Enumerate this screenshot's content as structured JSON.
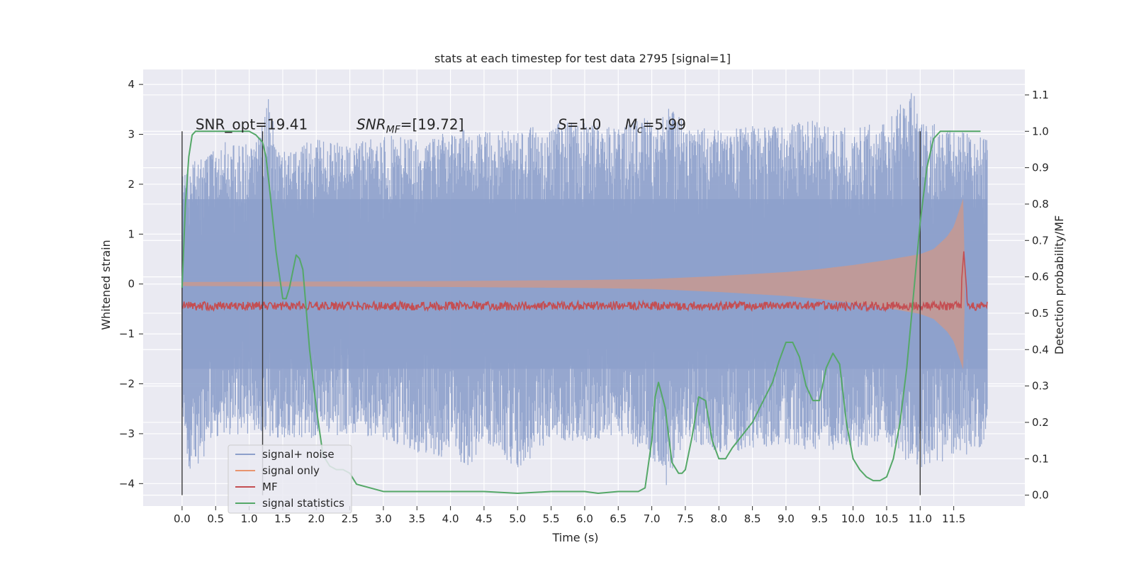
{
  "chart_data": {
    "type": "line",
    "title": "stats at each timestep for test data 2795 [signal=1]",
    "xlabel": "Time (s)",
    "ylabel": "Whitened strain",
    "y2label": "Detection probability/MF",
    "xlim": [
      -0.58,
      12.56
    ],
    "ylim": [
      -4.45,
      4.3
    ],
    "y2lim": [
      -0.03,
      1.17
    ],
    "xticks": [
      0.0,
      0.5,
      1.0,
      1.5,
      2.0,
      2.5,
      3.0,
      3.5,
      4.0,
      4.5,
      5.0,
      5.5,
      6.0,
      6.5,
      7.0,
      7.5,
      8.0,
      8.5,
      9.0,
      9.5,
      10.0,
      10.5,
      11.0,
      11.5
    ],
    "xtick_labels": [
      "0.0",
      "0.5",
      "1.0",
      "1.5",
      "2.0",
      "2.5",
      "3.0",
      "3.5",
      "4.0",
      "4.5",
      "5.0",
      "5.5",
      "6.0",
      "6.5",
      "7.0",
      "7.5",
      "8.0",
      "8.5",
      "9.0",
      "9.5",
      "10.0",
      "10.5",
      "11.0",
      "11.5"
    ],
    "yticks": [
      -4,
      -3,
      -2,
      -1,
      0,
      1,
      2,
      3,
      4
    ],
    "ytick_labels": [
      "−4",
      "−3",
      "−2",
      "−1",
      "0",
      "1",
      "2",
      "3",
      "4"
    ],
    "y2ticks": [
      0.0,
      0.1,
      0.2,
      0.3,
      0.4,
      0.5,
      0.6,
      0.7,
      0.8,
      0.9,
      1.0,
      1.1
    ],
    "y2tick_labels": [
      "0.0",
      "0.1",
      "0.2",
      "0.3",
      "0.4",
      "0.5",
      "0.6",
      "0.7",
      "0.8",
      "0.9",
      "1.0",
      "1.1"
    ],
    "grid": true,
    "legend_position": "lower-left",
    "vlines": [
      0.0,
      1.2,
      11.0
    ],
    "annotations": [
      {
        "text": "SNR_opt=19.41",
        "x": 0.2,
        "y": 3.1
      },
      {
        "text": "SNR_MF=[19.72]",
        "x": 2.6,
        "y": 3.1
      },
      {
        "text": "S=1.0",
        "x": 5.6,
        "y": 3.1
      },
      {
        "text": "M_c=5.99",
        "x": 6.6,
        "y": 3.1
      }
    ],
    "series": [
      {
        "name": "signal+ noise",
        "color": "#8da0cb",
        "axis": "left",
        "x_range": [
          0.0,
          12.0
        ],
        "envelope_max": [
          [
            0.0,
            2.2
          ],
          [
            0.5,
            2.9
          ],
          [
            1.0,
            2.8
          ],
          [
            1.3,
            3.75
          ],
          [
            1.5,
            2.7
          ],
          [
            2.0,
            2.9
          ],
          [
            2.5,
            2.8
          ],
          [
            3.0,
            3.0
          ],
          [
            3.5,
            2.9
          ],
          [
            4.0,
            3.1
          ],
          [
            4.5,
            3.2
          ],
          [
            5.0,
            3.1
          ],
          [
            5.5,
            3.2
          ],
          [
            6.0,
            3.3
          ],
          [
            6.5,
            3.1
          ],
          [
            7.0,
            3.5
          ],
          [
            7.2,
            3.7
          ],
          [
            7.5,
            3.2
          ],
          [
            8.0,
            3.1
          ],
          [
            8.5,
            3.2
          ],
          [
            9.0,
            3.2
          ],
          [
            9.5,
            3.3
          ],
          [
            10.0,
            3.1
          ],
          [
            10.5,
            3.3
          ],
          [
            10.9,
            3.9
          ],
          [
            11.0,
            3.3
          ],
          [
            11.5,
            3.1
          ],
          [
            12.0,
            2.9
          ]
        ],
        "envelope_min": [
          [
            0.0,
            -2.4
          ],
          [
            0.1,
            -3.95
          ],
          [
            0.5,
            -3.1
          ],
          [
            1.0,
            -3.0
          ],
          [
            1.5,
            -3.1
          ],
          [
            2.0,
            -3.1
          ],
          [
            2.5,
            -3.0
          ],
          [
            3.0,
            -3.1
          ],
          [
            3.5,
            -3.4
          ],
          [
            4.0,
            -3.5
          ],
          [
            4.3,
            -3.65
          ],
          [
            4.5,
            -3.2
          ],
          [
            5.0,
            -3.75
          ],
          [
            5.5,
            -3.1
          ],
          [
            6.0,
            -3.2
          ],
          [
            6.5,
            -3.0
          ],
          [
            7.0,
            -3.5
          ],
          [
            7.2,
            -4.1
          ],
          [
            7.5,
            -3.1
          ],
          [
            8.0,
            -3.4
          ],
          [
            8.5,
            -3.3
          ],
          [
            9.0,
            -3.2
          ],
          [
            9.5,
            -3.4
          ],
          [
            10.0,
            -3.3
          ],
          [
            10.5,
            -3.2
          ],
          [
            11.0,
            -3.8
          ],
          [
            11.5,
            -3.5
          ],
          [
            11.65,
            -3.65
          ],
          [
            12.0,
            -3.2
          ]
        ]
      },
      {
        "name": "signal only",
        "color": "#e8956f",
        "axis": "left",
        "amplitude": [
          [
            0.0,
            0.04
          ],
          [
            2.0,
            0.05
          ],
          [
            4.0,
            0.06
          ],
          [
            6.0,
            0.08
          ],
          [
            7.0,
            0.1
          ],
          [
            7.5,
            0.13
          ],
          [
            8.0,
            0.16
          ],
          [
            8.5,
            0.2
          ],
          [
            9.0,
            0.24
          ],
          [
            9.5,
            0.3
          ],
          [
            10.0,
            0.38
          ],
          [
            10.5,
            0.48
          ],
          [
            11.0,
            0.6
          ],
          [
            11.2,
            0.7
          ],
          [
            11.4,
            0.95
          ],
          [
            11.5,
            1.15
          ],
          [
            11.6,
            1.55
          ],
          [
            11.65,
            1.75
          ],
          [
            11.67,
            0.0
          ]
        ]
      },
      {
        "name": "MF",
        "color": "#c44e52",
        "axis": "right",
        "baseline": 0.52,
        "peak": [
          11.65,
          0.67
        ]
      },
      {
        "name": "signal statistics",
        "color": "#55a868",
        "axis": "right",
        "x": [
          0.0,
          0.05,
          0.1,
          0.15,
          0.2,
          0.3,
          0.5,
          0.8,
          1.0,
          1.1,
          1.2,
          1.25,
          1.3,
          1.4,
          1.5,
          1.55,
          1.6,
          1.7,
          1.75,
          1.8,
          1.9,
          2.0,
          2.1,
          2.2,
          2.3,
          2.4,
          2.5,
          2.6,
          2.8,
          3.0,
          3.5,
          4.0,
          4.5,
          5.0,
          5.5,
          6.0,
          6.2,
          6.5,
          6.8,
          6.9,
          7.0,
          7.05,
          7.1,
          7.2,
          7.3,
          7.4,
          7.45,
          7.5,
          7.6,
          7.7,
          7.8,
          7.9,
          8.0,
          8.1,
          8.2,
          8.5,
          8.8,
          8.9,
          9.0,
          9.1,
          9.2,
          9.3,
          9.4,
          9.5,
          9.6,
          9.7,
          9.8,
          9.9,
          10.0,
          10.1,
          10.2,
          10.3,
          10.4,
          10.5,
          10.6,
          10.7,
          10.8,
          10.9,
          11.0,
          11.1,
          11.2,
          11.3,
          11.5,
          11.9
        ],
        "y": [
          0.57,
          0.8,
          0.93,
          0.99,
          1.0,
          1.0,
          1.0,
          1.0,
          1.0,
          0.99,
          0.97,
          0.93,
          0.85,
          0.67,
          0.54,
          0.54,
          0.57,
          0.66,
          0.65,
          0.62,
          0.4,
          0.24,
          0.11,
          0.08,
          0.07,
          0.07,
          0.06,
          0.03,
          0.02,
          0.01,
          0.01,
          0.01,
          0.01,
          0.005,
          0.01,
          0.01,
          0.005,
          0.01,
          0.01,
          0.02,
          0.15,
          0.27,
          0.31,
          0.24,
          0.09,
          0.06,
          0.06,
          0.07,
          0.16,
          0.27,
          0.26,
          0.15,
          0.1,
          0.1,
          0.13,
          0.2,
          0.31,
          0.37,
          0.42,
          0.42,
          0.38,
          0.3,
          0.26,
          0.26,
          0.35,
          0.39,
          0.36,
          0.2,
          0.1,
          0.07,
          0.05,
          0.04,
          0.04,
          0.05,
          0.1,
          0.2,
          0.35,
          0.55,
          0.75,
          0.9,
          0.98,
          1.0,
          1.0,
          1.0
        ]
      }
    ]
  }
}
